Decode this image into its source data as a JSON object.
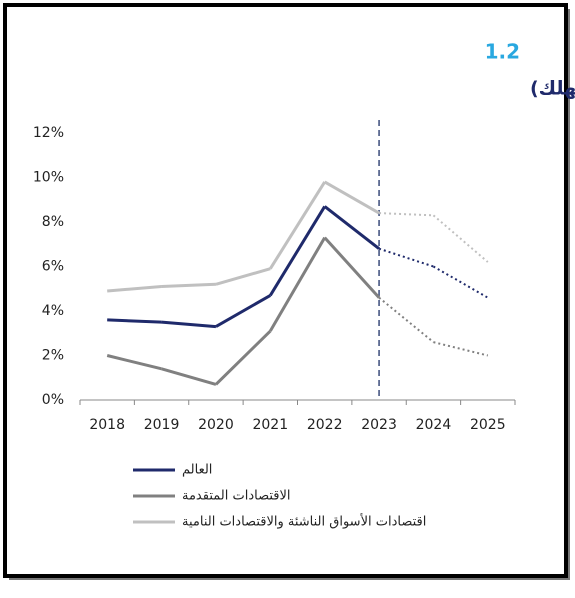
{
  "chart_data": {
    "type": "line",
    "number": "1.2",
    "title": "التضخم (متوسط أسعار المستهلك)",
    "categories": [
      "2018",
      "2019",
      "2020",
      "2021",
      "2022",
      "2023",
      "2024",
      "2025"
    ],
    "projection_start": "2023",
    "series": [
      {
        "name": "العالم",
        "color": "#1f2a6b",
        "values": [
          3.6,
          3.5,
          3.3,
          4.7,
          8.7,
          6.8,
          6.0,
          4.6
        ]
      },
      {
        "name": "الاقتصادات المتقدمة",
        "color": "#808080",
        "values": [
          2.0,
          1.4,
          0.7,
          3.1,
          7.3,
          4.6,
          2.6,
          2.0
        ]
      },
      {
        "name": "اقتصادات الأسواق الناشئة والاقتصادات النامية",
        "color": "#c0c0c0",
        "values": [
          4.9,
          5.1,
          5.2,
          5.9,
          9.8,
          8.4,
          8.3,
          6.2
        ]
      }
    ],
    "ylim": [
      0,
      12
    ],
    "yticks": [
      {
        "value": 0,
        "label": "0%"
      },
      {
        "value": 2,
        "label": "2%"
      },
      {
        "value": 4,
        "label": "4%"
      },
      {
        "value": 6,
        "label": "6%"
      },
      {
        "value": 8,
        "label": "8%"
      },
      {
        "value": 10,
        "label": "10%"
      },
      {
        "value": 12,
        "label": "12%"
      }
    ],
    "grid": false
  }
}
